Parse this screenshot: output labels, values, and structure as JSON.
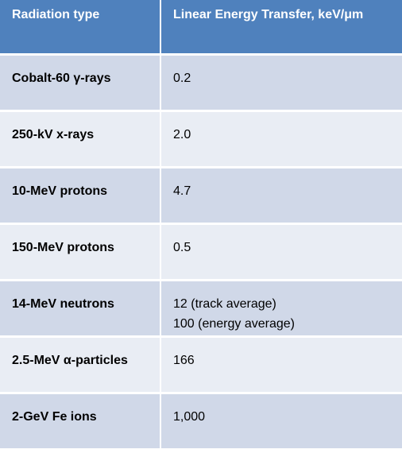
{
  "table": {
    "headers": [
      "Radiation type",
      "Linear Energy Transfer, keV/μm"
    ],
    "rows": [
      {
        "type": "Cobalt-60 γ-rays",
        "let": [
          "0.2"
        ]
      },
      {
        "type": "250-kV x-rays",
        "let": [
          "2.0"
        ]
      },
      {
        "type": "10-MeV protons",
        "let": [
          "4.7"
        ]
      },
      {
        "type": "150-MeV protons",
        "let": [
          "0.5"
        ]
      },
      {
        "type": "14-MeV neutrons",
        "let": [
          "12 (track average)",
          "100 (energy average)"
        ]
      },
      {
        "type": "2.5-MeV α-particles",
        "let": [
          "166"
        ]
      },
      {
        "type": "2-GeV Fe ions",
        "let": [
          "1,000"
        ]
      }
    ],
    "colors": {
      "header_bg": "#4f81bd",
      "row_odd": "#d0d8e8",
      "row_even": "#e9edf4",
      "header_text": "#ffffff"
    }
  }
}
